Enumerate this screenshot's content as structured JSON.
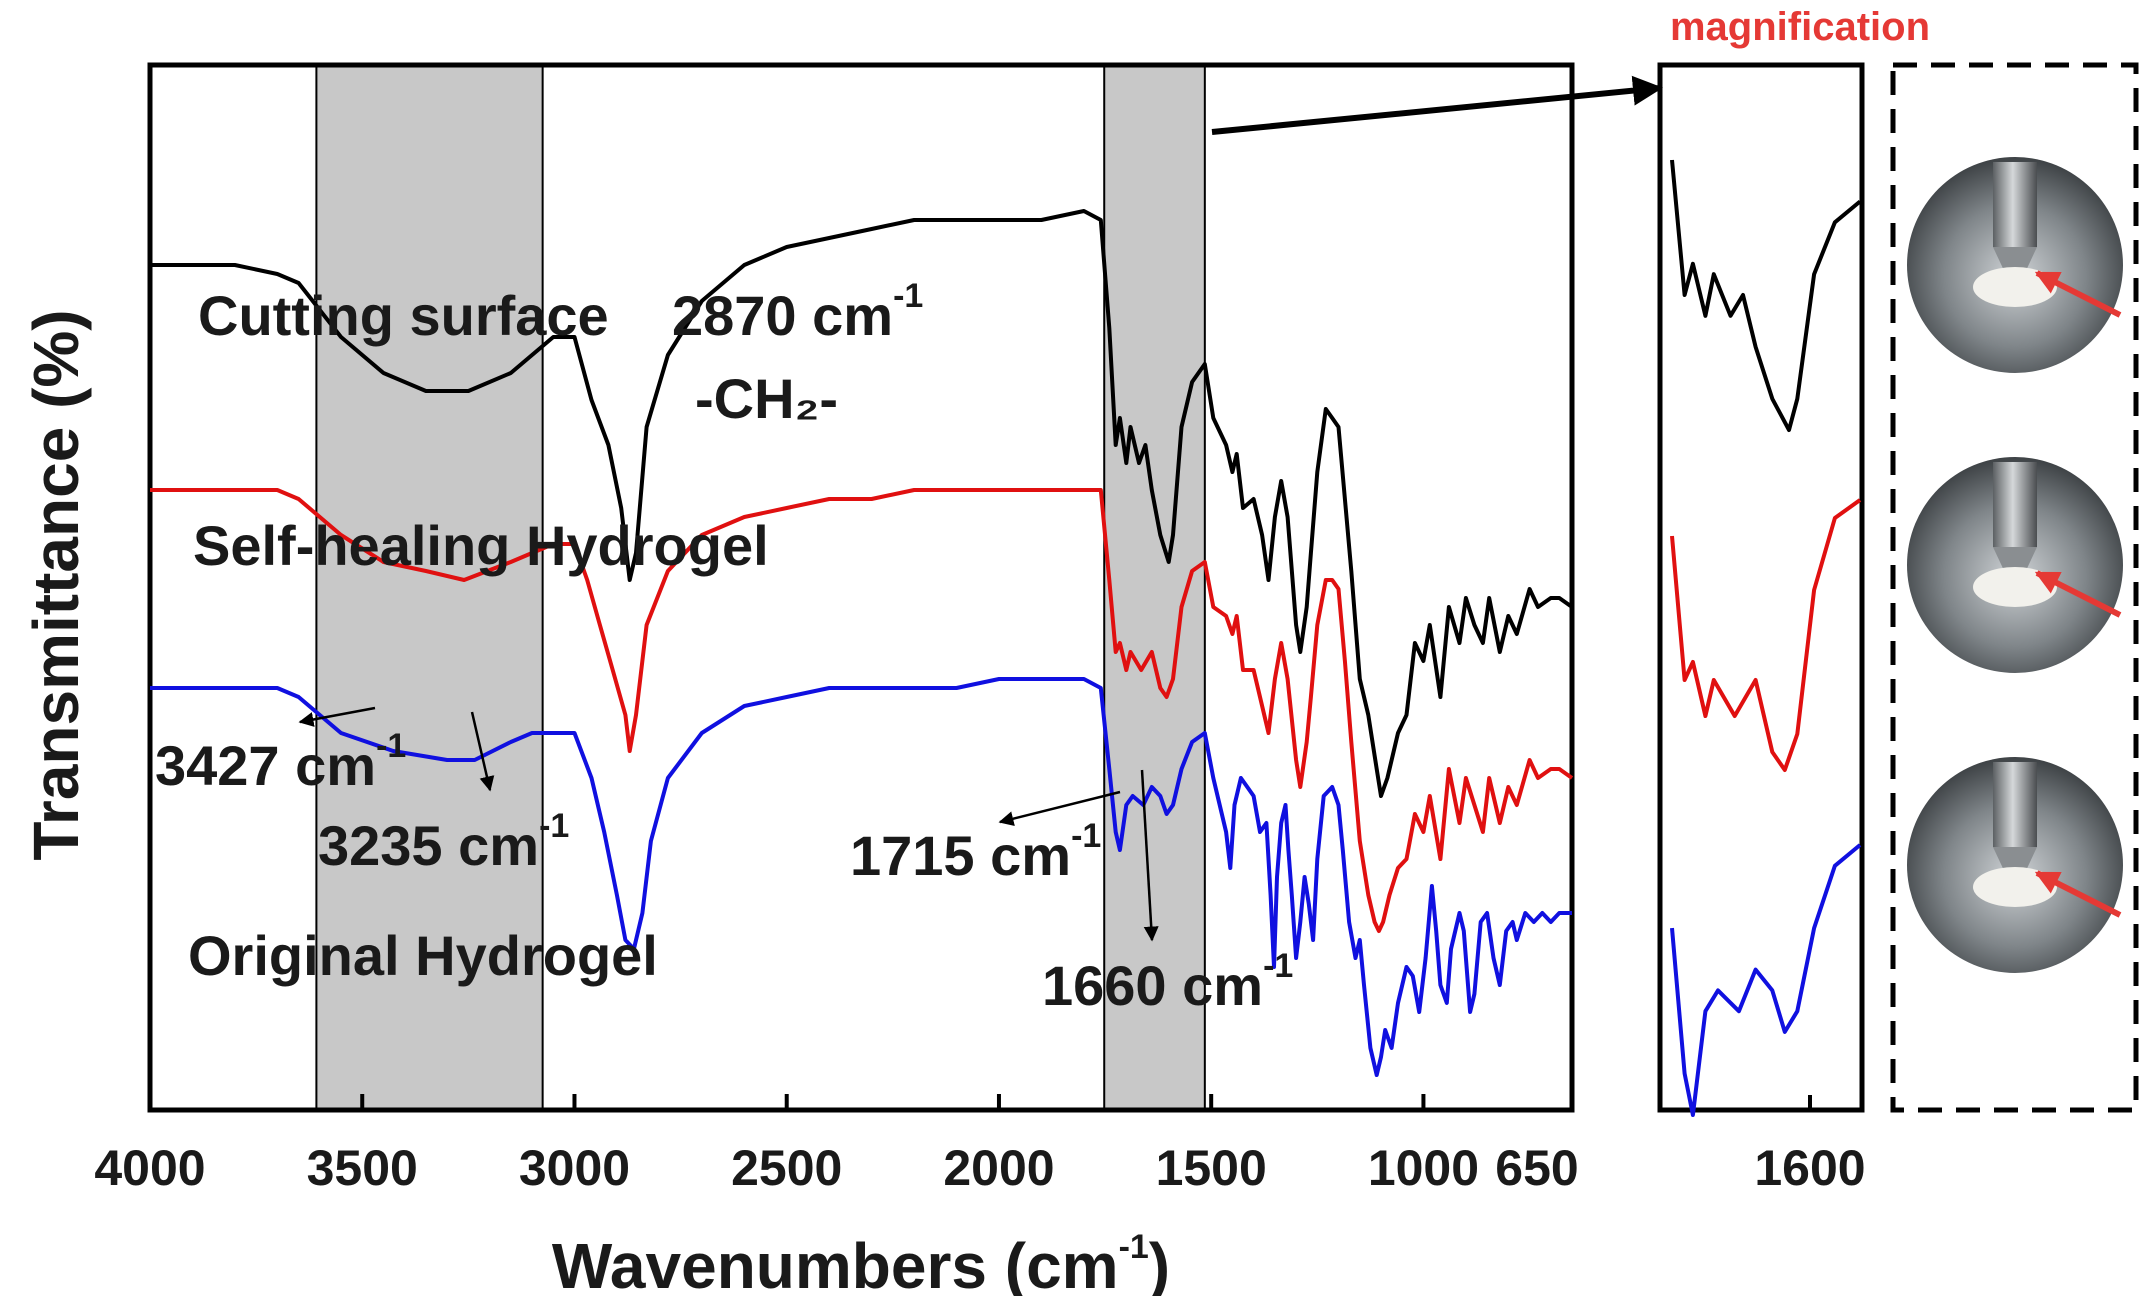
{
  "chart_data": {
    "type": "line",
    "xlabel": "Wavenumbers (cm",
    "xlabel_sup": "-1",
    "xlabel_close": ")",
    "ylabel": "Transmittance (%)",
    "xlim": [
      4000,
      650
    ],
    "x_reversed": true,
    "xticks": [
      "4000",
      "3500",
      "3000",
      "2500",
      "2000",
      "1500",
      "1000",
      "650"
    ],
    "shaded_regions": [
      [
        3608,
        3075
      ],
      [
        1752,
        1515
      ]
    ],
    "series": [
      {
        "name": "Cutting surface",
        "color": "#000000",
        "points": [
          [
            4000,
            0.9
          ],
          [
            3900,
            0.9
          ],
          [
            3800,
            0.9
          ],
          [
            3700,
            0.89
          ],
          [
            3650,
            0.88
          ],
          [
            3550,
            0.82
          ],
          [
            3450,
            0.78
          ],
          [
            3350,
            0.76
          ],
          [
            3250,
            0.76
          ],
          [
            3150,
            0.78
          ],
          [
            3050,
            0.82
          ],
          [
            3000,
            0.82
          ],
          [
            2960,
            0.75
          ],
          [
            2920,
            0.7
          ],
          [
            2890,
            0.63
          ],
          [
            2870,
            0.55
          ],
          [
            2855,
            0.58
          ],
          [
            2830,
            0.72
          ],
          [
            2780,
            0.8
          ],
          [
            2700,
            0.86
          ],
          [
            2600,
            0.9
          ],
          [
            2500,
            0.92
          ],
          [
            2400,
            0.93
          ],
          [
            2300,
            0.94
          ],
          [
            2200,
            0.95
          ],
          [
            2100,
            0.95
          ],
          [
            2000,
            0.95
          ],
          [
            1950,
            0.95
          ],
          [
            1900,
            0.95
          ],
          [
            1800,
            0.96
          ],
          [
            1760,
            0.95
          ],
          [
            1740,
            0.83
          ],
          [
            1725,
            0.7
          ],
          [
            1715,
            0.73
          ],
          [
            1700,
            0.68
          ],
          [
            1690,
            0.72
          ],
          [
            1670,
            0.68
          ],
          [
            1655,
            0.7
          ],
          [
            1640,
            0.65
          ],
          [
            1620,
            0.6
          ],
          [
            1600,
            0.57
          ],
          [
            1590,
            0.6
          ],
          [
            1570,
            0.72
          ],
          [
            1545,
            0.77
          ],
          [
            1515,
            0.79
          ],
          [
            1495,
            0.73
          ],
          [
            1465,
            0.7
          ],
          [
            1450,
            0.67
          ],
          [
            1440,
            0.69
          ],
          [
            1425,
            0.63
          ],
          [
            1400,
            0.64
          ],
          [
            1380,
            0.6
          ],
          [
            1365,
            0.55
          ],
          [
            1350,
            0.62
          ],
          [
            1335,
            0.66
          ],
          [
            1320,
            0.62
          ],
          [
            1300,
            0.5
          ],
          [
            1290,
            0.47
          ],
          [
            1275,
            0.52
          ],
          [
            1265,
            0.58
          ],
          [
            1250,
            0.67
          ],
          [
            1230,
            0.74
          ],
          [
            1215,
            0.73
          ],
          [
            1200,
            0.72
          ],
          [
            1185,
            0.64
          ],
          [
            1170,
            0.56
          ],
          [
            1150,
            0.44
          ],
          [
            1130,
            0.4
          ],
          [
            1110,
            0.34
          ],
          [
            1100,
            0.31
          ],
          [
            1085,
            0.33
          ],
          [
            1060,
            0.38
          ],
          [
            1040,
            0.4
          ],
          [
            1020,
            0.48
          ],
          [
            1000,
            0.46
          ],
          [
            985,
            0.5
          ],
          [
            960,
            0.42
          ],
          [
            940,
            0.52
          ],
          [
            915,
            0.48
          ],
          [
            900,
            0.53
          ],
          [
            880,
            0.5
          ],
          [
            860,
            0.48
          ],
          [
            845,
            0.53
          ],
          [
            820,
            0.47
          ],
          [
            800,
            0.51
          ],
          [
            780,
            0.49
          ],
          [
            750,
            0.54
          ],
          [
            730,
            0.52
          ],
          [
            700,
            0.53
          ],
          [
            680,
            0.53
          ],
          [
            650,
            0.52
          ]
        ]
      },
      {
        "name": "Self-healing Hydrogel",
        "color": "#e01010",
        "points": [
          [
            4000,
            0.65
          ],
          [
            3900,
            0.65
          ],
          [
            3800,
            0.65
          ],
          [
            3700,
            0.65
          ],
          [
            3650,
            0.64
          ],
          [
            3550,
            0.6
          ],
          [
            3450,
            0.57
          ],
          [
            3350,
            0.56
          ],
          [
            3260,
            0.55
          ],
          [
            3150,
            0.57
          ],
          [
            3100,
            0.58
          ],
          [
            3050,
            0.59
          ],
          [
            3000,
            0.59
          ],
          [
            2970,
            0.55
          ],
          [
            2940,
            0.5
          ],
          [
            2910,
            0.45
          ],
          [
            2880,
            0.4
          ],
          [
            2870,
            0.36
          ],
          [
            2855,
            0.4
          ],
          [
            2830,
            0.5
          ],
          [
            2780,
            0.56
          ],
          [
            2700,
            0.6
          ],
          [
            2600,
            0.62
          ],
          [
            2500,
            0.63
          ],
          [
            2400,
            0.64
          ],
          [
            2300,
            0.64
          ],
          [
            2200,
            0.65
          ],
          [
            2100,
            0.65
          ],
          [
            2000,
            0.65
          ],
          [
            1900,
            0.65
          ],
          [
            1800,
            0.65
          ],
          [
            1760,
            0.65
          ],
          [
            1740,
            0.55
          ],
          [
            1725,
            0.47
          ],
          [
            1715,
            0.48
          ],
          [
            1700,
            0.45
          ],
          [
            1690,
            0.47
          ],
          [
            1665,
            0.45
          ],
          [
            1640,
            0.47
          ],
          [
            1620,
            0.43
          ],
          [
            1605,
            0.42
          ],
          [
            1590,
            0.44
          ],
          [
            1570,
            0.52
          ],
          [
            1545,
            0.56
          ],
          [
            1515,
            0.57
          ],
          [
            1495,
            0.52
          ],
          [
            1465,
            0.51
          ],
          [
            1450,
            0.49
          ],
          [
            1440,
            0.51
          ],
          [
            1425,
            0.45
          ],
          [
            1400,
            0.45
          ],
          [
            1385,
            0.42
          ],
          [
            1365,
            0.38
          ],
          [
            1350,
            0.44
          ],
          [
            1335,
            0.48
          ],
          [
            1320,
            0.44
          ],
          [
            1300,
            0.35
          ],
          [
            1290,
            0.32
          ],
          [
            1275,
            0.37
          ],
          [
            1265,
            0.42
          ],
          [
            1250,
            0.5
          ],
          [
            1230,
            0.55
          ],
          [
            1215,
            0.55
          ],
          [
            1200,
            0.54
          ],
          [
            1185,
            0.46
          ],
          [
            1170,
            0.37
          ],
          [
            1150,
            0.26
          ],
          [
            1130,
            0.2
          ],
          [
            1115,
            0.17
          ],
          [
            1105,
            0.16
          ],
          [
            1095,
            0.17
          ],
          [
            1080,
            0.2
          ],
          [
            1060,
            0.23
          ],
          [
            1040,
            0.24
          ],
          [
            1020,
            0.29
          ],
          [
            1000,
            0.27
          ],
          [
            985,
            0.31
          ],
          [
            960,
            0.24
          ],
          [
            940,
            0.34
          ],
          [
            915,
            0.28
          ],
          [
            900,
            0.33
          ],
          [
            880,
            0.3
          ],
          [
            860,
            0.27
          ],
          [
            845,
            0.33
          ],
          [
            820,
            0.28
          ],
          [
            800,
            0.32
          ],
          [
            780,
            0.3
          ],
          [
            750,
            0.35
          ],
          [
            730,
            0.33
          ],
          [
            700,
            0.34
          ],
          [
            680,
            0.34
          ],
          [
            650,
            0.33
          ]
        ]
      },
      {
        "name": "Original Hydrogel",
        "color": "#1010e0",
        "points": [
          [
            4000,
            0.43
          ],
          [
            3900,
            0.43
          ],
          [
            3800,
            0.43
          ],
          [
            3700,
            0.43
          ],
          [
            3650,
            0.42
          ],
          [
            3550,
            0.38
          ],
          [
            3427,
            0.36
          ],
          [
            3300,
            0.35
          ],
          [
            3235,
            0.35
          ],
          [
            3150,
            0.37
          ],
          [
            3100,
            0.38
          ],
          [
            3050,
            0.38
          ],
          [
            3000,
            0.38
          ],
          [
            2960,
            0.33
          ],
          [
            2930,
            0.27
          ],
          [
            2900,
            0.2
          ],
          [
            2880,
            0.15
          ],
          [
            2860,
            0.14
          ],
          [
            2840,
            0.18
          ],
          [
            2820,
            0.26
          ],
          [
            2780,
            0.33
          ],
          [
            2700,
            0.38
          ],
          [
            2600,
            0.41
          ],
          [
            2500,
            0.42
          ],
          [
            2400,
            0.43
          ],
          [
            2300,
            0.43
          ],
          [
            2200,
            0.43
          ],
          [
            2100,
            0.43
          ],
          [
            2000,
            0.44
          ],
          [
            1900,
            0.44
          ],
          [
            1800,
            0.44
          ],
          [
            1760,
            0.43
          ],
          [
            1740,
            0.34
          ],
          [
            1725,
            0.27
          ],
          [
            1715,
            0.25
          ],
          [
            1700,
            0.3
          ],
          [
            1685,
            0.31
          ],
          [
            1660,
            0.3
          ],
          [
            1640,
            0.32
          ],
          [
            1620,
            0.31
          ],
          [
            1605,
            0.29
          ],
          [
            1590,
            0.3
          ],
          [
            1570,
            0.34
          ],
          [
            1545,
            0.37
          ],
          [
            1515,
            0.38
          ],
          [
            1495,
            0.33
          ],
          [
            1480,
            0.3
          ],
          [
            1465,
            0.27
          ],
          [
            1455,
            0.23
          ],
          [
            1445,
            0.3
          ],
          [
            1430,
            0.33
          ],
          [
            1415,
            0.32
          ],
          [
            1400,
            0.31
          ],
          [
            1385,
            0.27
          ],
          [
            1370,
            0.28
          ],
          [
            1360,
            0.2
          ],
          [
            1352,
            0.12
          ],
          [
            1345,
            0.22
          ],
          [
            1335,
            0.28
          ],
          [
            1325,
            0.3
          ],
          [
            1318,
            0.25
          ],
          [
            1310,
            0.2
          ],
          [
            1300,
            0.13
          ],
          [
            1290,
            0.17
          ],
          [
            1280,
            0.22
          ],
          [
            1270,
            0.19
          ],
          [
            1260,
            0.15
          ],
          [
            1250,
            0.24
          ],
          [
            1235,
            0.31
          ],
          [
            1215,
            0.32
          ],
          [
            1200,
            0.3
          ],
          [
            1190,
            0.25
          ],
          [
            1175,
            0.17
          ],
          [
            1160,
            0.13
          ],
          [
            1150,
            0.15
          ],
          [
            1140,
            0.1
          ],
          [
            1125,
            0.03
          ],
          [
            1110,
            0.0
          ],
          [
            1100,
            0.02
          ],
          [
            1090,
            0.05
          ],
          [
            1075,
            0.03
          ],
          [
            1060,
            0.08
          ],
          [
            1040,
            0.12
          ],
          [
            1025,
            0.11
          ],
          [
            1010,
            0.07
          ],
          [
            995,
            0.13
          ],
          [
            980,
            0.21
          ],
          [
            970,
            0.16
          ],
          [
            960,
            0.1
          ],
          [
            945,
            0.08
          ],
          [
            935,
            0.14
          ],
          [
            915,
            0.18
          ],
          [
            905,
            0.16
          ],
          [
            890,
            0.07
          ],
          [
            880,
            0.09
          ],
          [
            865,
            0.17
          ],
          [
            850,
            0.18
          ],
          [
            835,
            0.13
          ],
          [
            820,
            0.1
          ],
          [
            805,
            0.16
          ],
          [
            790,
            0.17
          ],
          [
            780,
            0.15
          ],
          [
            760,
            0.18
          ],
          [
            740,
            0.17
          ],
          [
            720,
            0.18
          ],
          [
            700,
            0.17
          ],
          [
            680,
            0.18
          ],
          [
            650,
            0.18
          ]
        ]
      }
    ],
    "series_labels": [
      {
        "text": "Cutting surface",
        "series": 0
      },
      {
        "text": "Self-healing Hydrogel",
        "series": 1
      },
      {
        "text": "Original Hydrogel",
        "series": 2
      }
    ],
    "annotations": [
      {
        "text": "2870 cm",
        "sup": "-1",
        "x": 2870
      },
      {
        "text": "-CH₂-",
        "sup": "",
        "x": 2870
      },
      {
        "text": "3427 cm",
        "sup": "-1",
        "x": 3427
      },
      {
        "text": "3235 cm",
        "sup": "-1",
        "x": 3235
      },
      {
        "text": "1715 cm",
        "sup": "-1",
        "x": 1715
      },
      {
        "text": "1660 cm",
        "sup": "-1",
        "x": 1660
      }
    ],
    "inset": {
      "title": "magnification",
      "xticks": [
        "1600"
      ],
      "xlim": [
        1752,
        1515
      ]
    },
    "photo_panel": {
      "count": 3,
      "arrow_color": "#e53935"
    }
  }
}
